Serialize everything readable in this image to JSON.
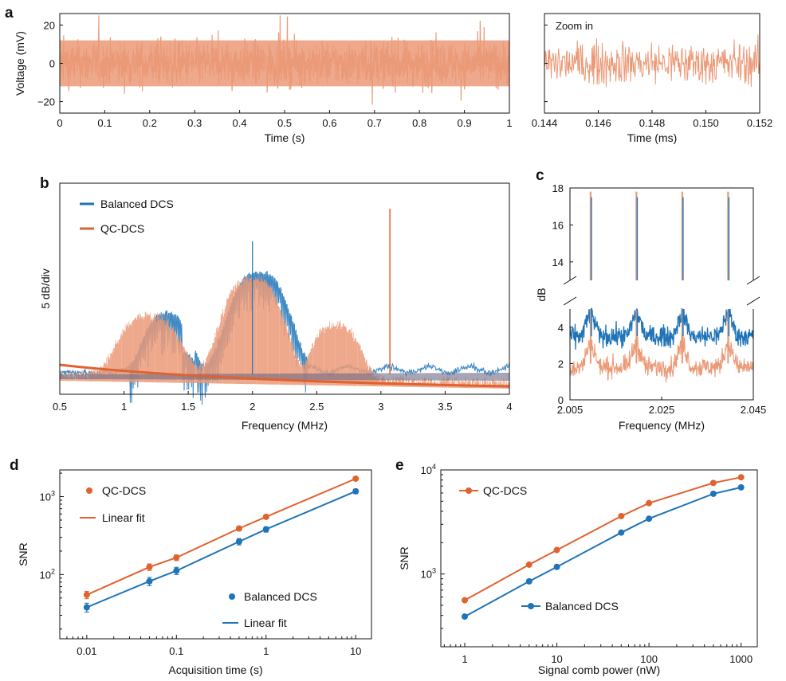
{
  "colors": {
    "qc": "#E0622F",
    "qc_light": "#EB9A78",
    "balanced": "#1F74B8",
    "axis": "#111111"
  },
  "panel_letters": [
    "a",
    "b",
    "c",
    "d",
    "e"
  ],
  "chart_data": [
    {
      "id": "a1",
      "type": "line",
      "xlabel": "Time (s)",
      "ylabel": "Voltage (mV)",
      "xlim": [
        0,
        1
      ],
      "ylim": [
        -26,
        26
      ],
      "xticks": [
        0,
        0.1,
        0.2,
        0.3,
        0.4,
        0.5,
        0.6,
        0.7,
        0.8,
        0.9,
        1
      ],
      "xtick_labels": [
        "0",
        "0.1",
        "0.2",
        "0.3",
        "0.4",
        "0.5",
        "0.6",
        "0.7",
        "0.8",
        "0.9",
        "1"
      ],
      "yticks": [
        -20,
        0,
        20
      ],
      "ytick_labels": [
        "−20",
        "0",
        "20"
      ],
      "series": [
        {
          "description": "dense noise trace, mostly within ±15 mV, peaks near ±25 mV"
        }
      ]
    },
    {
      "id": "a2",
      "type": "line",
      "annotation": "Zoom in",
      "xlabel": "Time (ms)",
      "xlim": [
        0.144,
        0.152
      ],
      "ylim": [
        -26,
        26
      ],
      "xticks": [
        0.144,
        0.146,
        0.148,
        0.15,
        0.152
      ],
      "xtick_labels": [
        "0.144",
        "0.146",
        "0.148",
        "0.150",
        "0.152"
      ],
      "yticks": [
        -20,
        0,
        20
      ]
    },
    {
      "id": "b",
      "type": "line",
      "xlabel": "Frequency (MHz)",
      "ylabel": "5 dB/div",
      "xlim": [
        0.5,
        4
      ],
      "xticks": [
        0.5,
        1,
        1.5,
        2,
        2.5,
        3,
        3.5,
        4
      ],
      "xtick_labels": [
        "0.5",
        "1",
        "1.5",
        "2",
        "2.5",
        "3",
        "3.5",
        "4"
      ],
      "legend": [
        "Balanced DCS",
        "QC-DCS"
      ],
      "legend_position": "top-left",
      "series": [
        {
          "name": "Balanced DCS",
          "envelope": "humps peaking near 1.4 MHz and 2.0 MHz, falling off near 2.4 MHz; spike at 2.0 MHz"
        },
        {
          "name": "QC-DCS",
          "envelope": "humps near 1.2, 2.0 and 2.7 MHz on a lower noise floor; spike near 3.07 MHz"
        }
      ]
    },
    {
      "id": "c",
      "type": "line",
      "xlabel": "Frequency (MHz)",
      "ylabel": "dB",
      "xlim": [
        2.005,
        2.045
      ],
      "xticks": [
        2.005,
        2.025,
        2.045
      ],
      "xtick_labels": [
        "2.005",
        "2.025",
        "2.045"
      ],
      "yticks_upper": [
        14,
        16,
        18
      ],
      "yticks_lower": [
        0,
        2,
        4
      ],
      "ylim_upper": [
        13,
        18
      ],
      "ylim_lower": [
        0,
        5
      ],
      "peaks_mhz": [
        2.0095,
        2.0195,
        2.0295,
        2.0395
      ],
      "series": [
        {
          "name": "Balanced DCS",
          "floor_db": 3.5,
          "peak_db": 17.5
        },
        {
          "name": "QC-DCS",
          "floor_db": 1.8,
          "peak_db": 17.8
        }
      ]
    },
    {
      "id": "d",
      "type": "scatter",
      "xlabel": "Acquisition time (s)",
      "ylabel": "SNR",
      "xscale": "log",
      "yscale": "log",
      "xlim": [
        0.005,
        15
      ],
      "ylim": [
        15,
        2200
      ],
      "xticks": [
        0.01,
        0.1,
        1,
        10
      ],
      "xtick_labels": [
        "0.01",
        "0.1",
        "1",
        "10"
      ],
      "yticks": [
        100,
        1000
      ],
      "ytick_base": [
        "10",
        "10"
      ],
      "ytick_exp": [
        "2",
        "3"
      ],
      "legend": [
        "QC-DCS",
        "Linear fit",
        "Balanced DCS",
        "Linear fit"
      ],
      "series": [
        {
          "name": "QC-DCS",
          "x": [
            0.01,
            0.05,
            0.1,
            0.5,
            1,
            10
          ],
          "y": [
            55,
            125,
            165,
            390,
            550,
            1700
          ],
          "err": [
            6,
            12,
            14,
            25,
            30,
            70
          ]
        },
        {
          "name": "Balanced DCS",
          "x": [
            0.01,
            0.05,
            0.1,
            0.5,
            1,
            10
          ],
          "y": [
            38,
            82,
            112,
            265,
            380,
            1170
          ],
          "err": [
            5,
            10,
            12,
            25,
            30,
            80
          ]
        }
      ]
    },
    {
      "id": "e",
      "type": "line",
      "xlabel": "Signal comb power (nW)",
      "ylabel": "SNR",
      "xscale": "log",
      "yscale": "log",
      "xlim": [
        0.55,
        1500
      ],
      "ylim": [
        200,
        10000
      ],
      "xticks": [
        1,
        10,
        100,
        1000
      ],
      "xtick_labels": [
        "1",
        "10",
        "100",
        "1000"
      ],
      "yticks": [
        1000,
        10000
      ],
      "ytick_base": [
        "10",
        "10"
      ],
      "ytick_exp": [
        "3",
        "4"
      ],
      "legend": [
        "QC-DCS",
        "Balanced DCS"
      ],
      "series": [
        {
          "name": "QC-DCS",
          "x": [
            1,
            5,
            10,
            50,
            100,
            500,
            1000
          ],
          "y": [
            560,
            1230,
            1700,
            3600,
            4800,
            7500,
            8500
          ]
        },
        {
          "name": "Balanced DCS",
          "x": [
            1,
            5,
            10,
            50,
            100,
            500,
            1000
          ],
          "y": [
            390,
            850,
            1170,
            2500,
            3400,
            5900,
            6800
          ]
        }
      ]
    }
  ]
}
